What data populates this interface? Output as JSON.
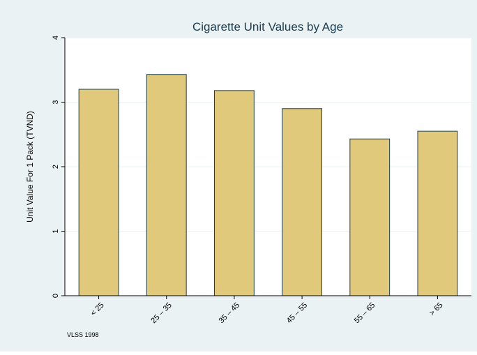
{
  "chart_data": {
    "type": "bar",
    "title": "Cigarette Unit Values by Age",
    "xlabel": "",
    "ylabel": "Unit Value For 1 Pack (TVND)",
    "categories": [
      "< 25",
      "25 – 35",
      "35 – 45",
      "45 – 55",
      "55 – 65",
      "> 65"
    ],
    "values": [
      3.2,
      3.43,
      3.18,
      2.9,
      2.43,
      2.55
    ],
    "ylim": [
      0,
      4
    ],
    "yticks": [
      "0",
      "1",
      "2",
      "3",
      "4"
    ],
    "grid": true,
    "legend": "none",
    "note": "VLSS 1998",
    "colors": {
      "background": "#eaf2f3",
      "plot_background": "#ffffff",
      "bar_fill": "#e0c97a",
      "bar_stroke": "#1b3e52",
      "title": "#1b3e52",
      "grid": "#eaf2f3",
      "text": "#000000"
    }
  }
}
